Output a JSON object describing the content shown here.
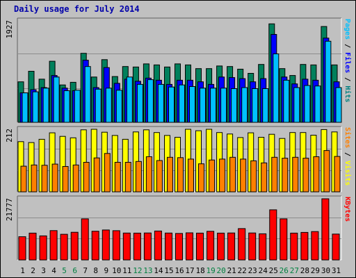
{
  "chart_data": {
    "type": "bar",
    "title": "Daily usage for July 2014",
    "x": [
      "1",
      "2",
      "3",
      "4",
      "5",
      "6",
      "7",
      "8",
      "9",
      "10",
      "11",
      "12",
      "13",
      "14",
      "15",
      "16",
      "17",
      "18",
      "19",
      "20",
      "21",
      "22",
      "23",
      "24",
      "25",
      "26",
      "27",
      "28",
      "29",
      "30",
      "31"
    ],
    "weekend_days": [
      "5",
      "6",
      "12",
      "13",
      "19",
      "20",
      "26",
      "27"
    ],
    "panels": [
      {
        "id": "hits",
        "max_label": "1927",
        "ylim": [
          0,
          1927
        ],
        "axis_label_parts": [
          {
            "text": "Pages",
            "color": "#00c0ff"
          },
          {
            "text": " / ",
            "color": "#000000"
          },
          {
            "text": "Files",
            "color": "#0000ff"
          },
          {
            "text": " / ",
            "color": "#000000"
          },
          {
            "text": "Hits",
            "color": "#008080"
          }
        ],
        "series": [
          {
            "name": "Hits",
            "color": "#00805c",
            "values": [
              770,
              970,
              820,
              1160,
              710,
              760,
              1310,
              860,
              1190,
              870,
              1060,
              1050,
              1110,
              1090,
              1050,
              1110,
              1090,
              1020,
              1020,
              1070,
              1060,
              1010,
              930,
              1100,
              1870,
              1020,
              890,
              1100,
              1090,
              1820,
              1090
            ]
          },
          {
            "name": "Files",
            "color": "#0000ff",
            "values": [
              560,
              620,
              660,
              890,
              650,
              600,
              1180,
              660,
              1040,
              740,
              820,
              780,
              840,
              800,
              720,
              800,
              800,
              770,
              720,
              860,
              850,
              830,
              770,
              830,
              1670,
              860,
              730,
              820,
              800,
              1600,
              770
            ]
          },
          {
            "name": "Pages",
            "color": "#00c0ff",
            "values": [
              560,
              580,
              650,
              860,
              600,
              610,
              1060,
              630,
              650,
              610,
              860,
              720,
              810,
              720,
              670,
              710,
              680,
              650,
              650,
              650,
              640,
              660,
              640,
              640,
              1300,
              800,
              660,
              700,
              690,
              1540,
              660
            ]
          }
        ]
      },
      {
        "id": "visits",
        "max_label": "212",
        "ylim": [
          0,
          212
        ],
        "axis_label_parts": [
          {
            "text": "Sites",
            "color": "#ff8000"
          },
          {
            "text": " / ",
            "color": "#000000"
          },
          {
            "text": "Visits",
            "color": "#ffff00"
          }
        ],
        "series": [
          {
            "name": "Visits",
            "color": "#ffff00",
            "values": [
              170,
              167,
              178,
              200,
              188,
              183,
              210,
              212,
              202,
              191,
              178,
              203,
              210,
              201,
              191,
              185,
              212,
              207,
              212,
              201,
              196,
              184,
              200,
              185,
              195,
              181,
              201,
              201,
              192,
              211,
              203
            ]
          },
          {
            "name": "Sites",
            "color": "#ff8000",
            "values": [
              87,
              91,
              90,
              94,
              86,
              91,
              100,
              115,
              130,
              100,
              100,
              103,
              119,
              106,
              117,
              116,
              111,
              95,
              108,
              111,
              117,
              111,
              105,
              98,
              117,
              114,
              117,
              114,
              119,
              140,
              120
            ]
          }
        ]
      },
      {
        "id": "kbytes",
        "max_label": "21777",
        "ylim": [
          0,
          21777
        ],
        "axis_label_parts": [
          {
            "text": "KBytes",
            "color": "#ff0000"
          }
        ],
        "series": [
          {
            "name": "KBytes",
            "color": "#ff0000",
            "values": [
              8260,
              9540,
              8560,
              10440,
              9130,
              9860,
              14620,
              10210,
              10670,
              10430,
              9570,
              9560,
              9590,
              10290,
              9570,
              9440,
              9660,
              9550,
              10190,
              9560,
              9590,
              11150,
              9590,
              9300,
              17840,
              14630,
              9560,
              9800,
              10090,
              21777,
              9210
            ]
          }
        ]
      }
    ]
  }
}
